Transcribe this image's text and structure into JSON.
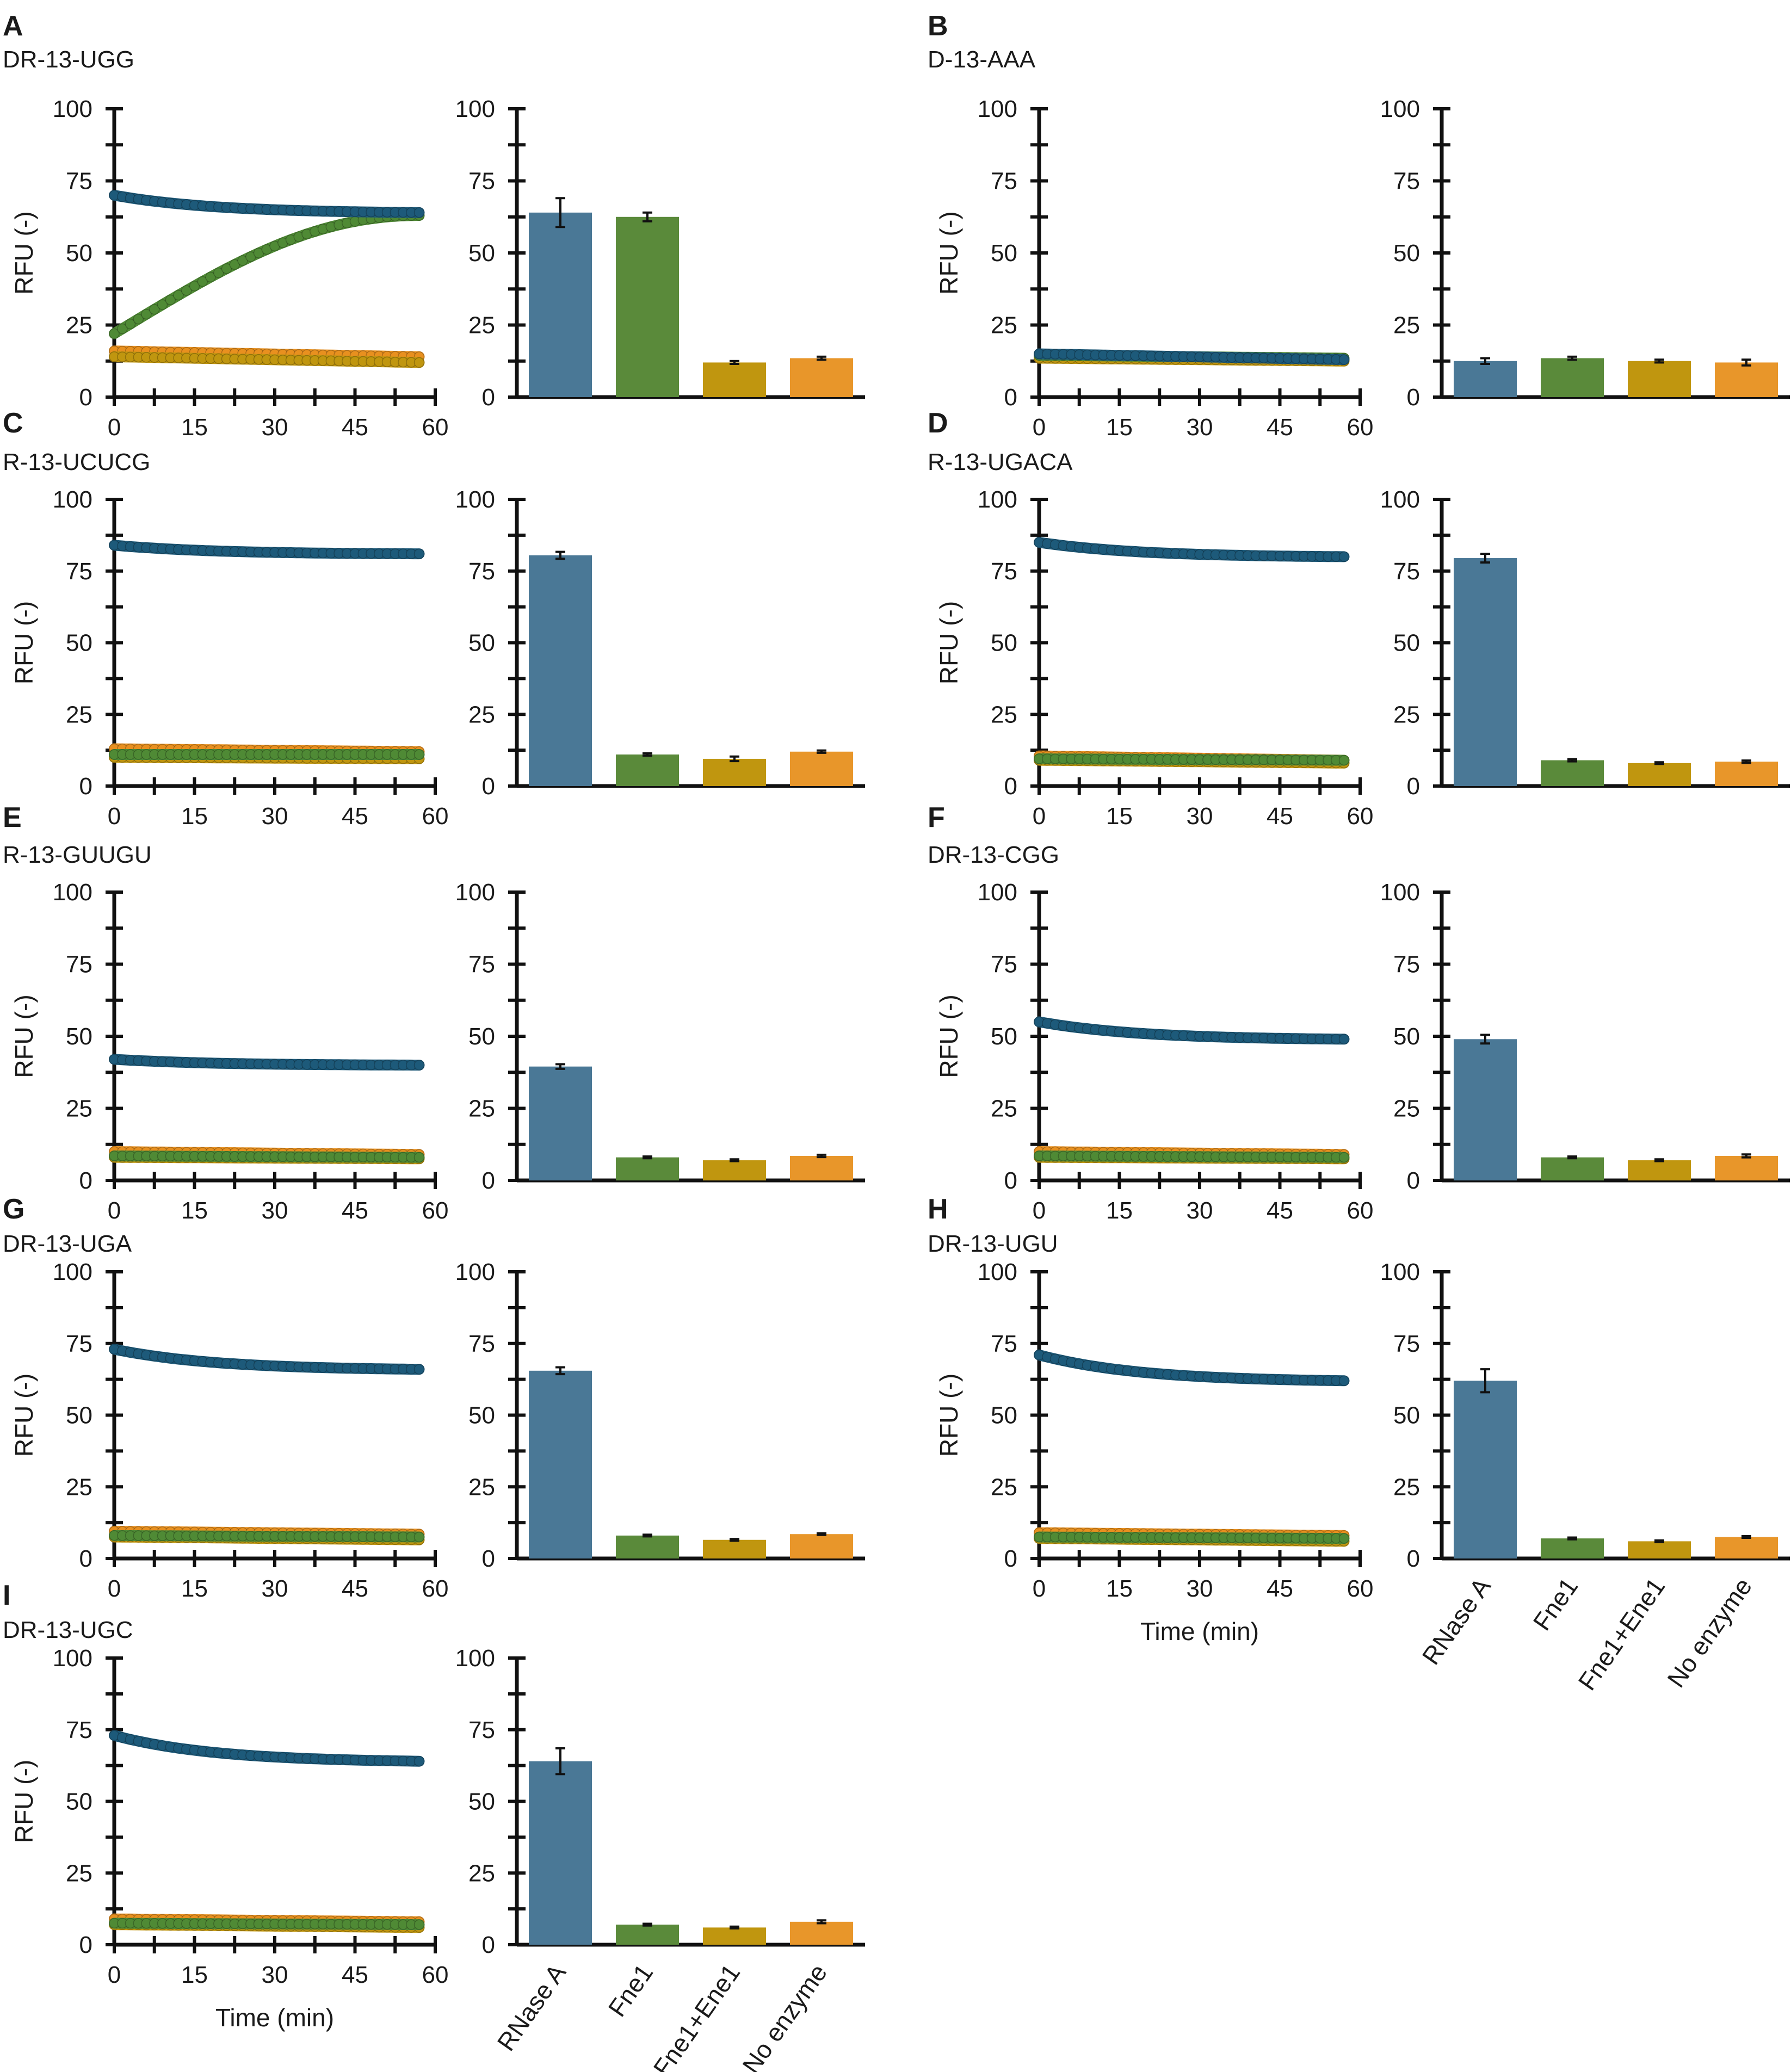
{
  "figure": {
    "y_axis_title": "RFU (-)",
    "x_axis_title": "Time (min)",
    "line_ticks_x": [
      0,
      15,
      30,
      45,
      60
    ],
    "ticks_y": [
      0,
      25,
      50,
      75,
      100
    ],
    "categories": [
      "RNase A",
      "Fne1",
      "Fne1+Ene1",
      "No enzyme"
    ],
    "colors": {
      "RNase A": "#1d5a7a",
      "Fne1": "#4f8a35",
      "Fne1+Ene1": "#c0960f",
      "No enzyme": "#e8901f",
      "bar_RNase A": "#4a7896",
      "bar_Fne1": "#5a8a3a",
      "bar_Fne1+Ene1": "#c0960f",
      "bar_No enzyme": "#e8962a"
    }
  },
  "chart_data": [
    {
      "panel": "A",
      "title": "DR-13-UGG",
      "type": "line+bar",
      "xlabel": "Time (min)",
      "ylabel": "RFU (-)",
      "xlim": [
        0,
        60
      ],
      "ylim": [
        0,
        100
      ],
      "series": [
        {
          "name": "RNase A",
          "start": 70,
          "end": 64,
          "shape": "decay"
        },
        {
          "name": "Fne1",
          "start": 22,
          "end": 63,
          "shape": "sigmoid"
        },
        {
          "name": "Fne1+Ene1",
          "start": 14,
          "end": 12,
          "shape": "linear"
        },
        {
          "name": "No enzyme",
          "start": 16,
          "end": 14,
          "shape": "linear"
        }
      ],
      "bars": {
        "categories": [
          "RNase A",
          "Fne1",
          "Fne1+Ene1",
          "No enzyme"
        ],
        "values": [
          64,
          62.5,
          12,
          13.5
        ],
        "errors": [
          5,
          1.5,
          0.5,
          0.5
        ]
      }
    },
    {
      "panel": "B",
      "title": "D-13-AAA",
      "type": "line+bar",
      "xlabel": "Time (min)",
      "ylabel": "RFU (-)",
      "xlim": [
        0,
        60
      ],
      "ylim": [
        0,
        100
      ],
      "series": [
        {
          "name": "RNase A",
          "start": 15,
          "end": 13,
          "shape": "linear"
        },
        {
          "name": "Fne1",
          "start": 14.5,
          "end": 13.5,
          "shape": "linear"
        },
        {
          "name": "Fne1+Ene1",
          "start": 13.5,
          "end": 12.5,
          "shape": "linear"
        },
        {
          "name": "No enzyme",
          "start": 14,
          "end": 13,
          "shape": "linear"
        }
      ],
      "bars": {
        "categories": [
          "RNase A",
          "Fne1",
          "Fne1+Ene1",
          "No enzyme"
        ],
        "values": [
          12.5,
          13.5,
          12.5,
          12
        ],
        "errors": [
          1,
          0.5,
          0.5,
          1
        ]
      }
    },
    {
      "panel": "C",
      "title": "R-13-UCUCG",
      "type": "line+bar",
      "xlabel": "Time (min)",
      "ylabel": "RFU (-)",
      "xlim": [
        0,
        60
      ],
      "ylim": [
        0,
        100
      ],
      "series": [
        {
          "name": "RNase A",
          "start": 84,
          "end": 81,
          "shape": "decay"
        },
        {
          "name": "Fne1",
          "start": 11,
          "end": 11,
          "shape": "linear"
        },
        {
          "name": "Fne1+Ene1",
          "start": 10,
          "end": 9.5,
          "shape": "linear"
        },
        {
          "name": "No enzyme",
          "start": 13,
          "end": 12,
          "shape": "linear"
        }
      ],
      "bars": {
        "categories": [
          "RNase A",
          "Fne1",
          "Fne1+Ene1",
          "No enzyme"
        ],
        "values": [
          80.5,
          11,
          9.5,
          12
        ],
        "errors": [
          1.2,
          0.4,
          0.8,
          0.4
        ]
      }
    },
    {
      "panel": "D",
      "title": "R-13-UGACA",
      "type": "line+bar",
      "xlabel": "Time (min)",
      "ylabel": "RFU (-)",
      "xlim": [
        0,
        60
      ],
      "ylim": [
        0,
        100
      ],
      "series": [
        {
          "name": "RNase A",
          "start": 85,
          "end": 80,
          "shape": "decay"
        },
        {
          "name": "Fne1",
          "start": 9.5,
          "end": 9,
          "shape": "linear"
        },
        {
          "name": "Fne1+Ene1",
          "start": 9,
          "end": 8,
          "shape": "linear"
        },
        {
          "name": "No enzyme",
          "start": 10.5,
          "end": 9,
          "shape": "linear"
        }
      ],
      "bars": {
        "categories": [
          "RNase A",
          "Fne1",
          "Fne1+Ene1",
          "No enzyme"
        ],
        "values": [
          79.5,
          9,
          8,
          8.5
        ],
        "errors": [
          1.5,
          0.4,
          0.3,
          0.4
        ]
      }
    },
    {
      "panel": "E",
      "title": "R-13-GUUGU",
      "type": "line+bar",
      "xlabel": "Time (min)",
      "ylabel": "RFU (-)",
      "xlim": [
        0,
        60
      ],
      "ylim": [
        0,
        100
      ],
      "series": [
        {
          "name": "RNase A",
          "start": 42,
          "end": 40,
          "shape": "decay"
        },
        {
          "name": "Fne1",
          "start": 8.5,
          "end": 8,
          "shape": "linear"
        },
        {
          "name": "Fne1+Ene1",
          "start": 8,
          "end": 7.5,
          "shape": "linear"
        },
        {
          "name": "No enzyme",
          "start": 10,
          "end": 9,
          "shape": "linear"
        }
      ],
      "bars": {
        "categories": [
          "RNase A",
          "Fne1",
          "Fne1+Ene1",
          "No enzyme"
        ],
        "values": [
          39.5,
          8,
          7,
          8.5
        ],
        "errors": [
          0.8,
          0.3,
          0.3,
          0.4
        ]
      }
    },
    {
      "panel": "F",
      "title": "DR-13-CGG",
      "type": "line+bar",
      "xlabel": "Time (min)",
      "ylabel": "RFU (-)",
      "xlim": [
        0,
        60
      ],
      "ylim": [
        0,
        100
      ],
      "series": [
        {
          "name": "RNase A",
          "start": 55,
          "end": 49,
          "shape": "decay"
        },
        {
          "name": "Fne1",
          "start": 8.5,
          "end": 8,
          "shape": "linear"
        },
        {
          "name": "Fne1+Ene1",
          "start": 8,
          "end": 7.5,
          "shape": "linear"
        },
        {
          "name": "No enzyme",
          "start": 10,
          "end": 9,
          "shape": "linear"
        }
      ],
      "bars": {
        "categories": [
          "RNase A",
          "Fne1",
          "Fne1+Ene1",
          "No enzyme"
        ],
        "values": [
          49,
          8,
          7,
          8.5
        ],
        "errors": [
          1.5,
          0.3,
          0.3,
          0.5
        ]
      }
    },
    {
      "panel": "G",
      "title": "DR-13-UGA",
      "type": "line+bar",
      "xlabel": "Time (min)",
      "ylabel": "RFU (-)",
      "xlim": [
        0,
        60
      ],
      "ylim": [
        0,
        100
      ],
      "series": [
        {
          "name": "RNase A",
          "start": 73,
          "end": 66,
          "shape": "decay"
        },
        {
          "name": "Fne1",
          "start": 8,
          "end": 7.5,
          "shape": "linear"
        },
        {
          "name": "Fne1+Ene1",
          "start": 7.5,
          "end": 6.5,
          "shape": "linear"
        },
        {
          "name": "No enzyme",
          "start": 9.5,
          "end": 8.5,
          "shape": "linear"
        }
      ],
      "bars": {
        "categories": [
          "RNase A",
          "Fne1",
          "Fne1+Ene1",
          "No enzyme"
        ],
        "values": [
          65.5,
          8,
          6.5,
          8.5
        ],
        "errors": [
          1.2,
          0.3,
          0.3,
          0.3
        ]
      }
    },
    {
      "panel": "H",
      "title": "DR-13-UGU",
      "type": "line+bar",
      "xlabel": "Time (min)",
      "ylabel": "RFU (-)",
      "xlim": [
        0,
        60
      ],
      "ylim": [
        0,
        100
      ],
      "series": [
        {
          "name": "RNase A",
          "start": 71,
          "end": 62,
          "shape": "decay"
        },
        {
          "name": "Fne1",
          "start": 7.5,
          "end": 7,
          "shape": "linear"
        },
        {
          "name": "Fne1+Ene1",
          "start": 7,
          "end": 6,
          "shape": "linear"
        },
        {
          "name": "No enzyme",
          "start": 9,
          "end": 8,
          "shape": "linear"
        }
      ],
      "bars": {
        "categories": [
          "RNase A",
          "Fne1",
          "Fne1+Ene1",
          "No enzyme"
        ],
        "values": [
          62,
          7,
          6,
          7.5
        ],
        "errors": [
          4,
          0.3,
          0.3,
          0.3
        ]
      }
    },
    {
      "panel": "I",
      "title": "DR-13-UGC",
      "type": "line+bar",
      "xlabel": "Time (min)",
      "ylabel": "RFU (-)",
      "xlim": [
        0,
        60
      ],
      "ylim": [
        0,
        100
      ],
      "series": [
        {
          "name": "RNase A",
          "start": 73,
          "end": 64,
          "shape": "decay"
        },
        {
          "name": "Fne1",
          "start": 7.5,
          "end": 7,
          "shape": "linear"
        },
        {
          "name": "Fne1+Ene1",
          "start": 7,
          "end": 6,
          "shape": "linear"
        },
        {
          "name": "No enzyme",
          "start": 9,
          "end": 8,
          "shape": "linear"
        }
      ],
      "bars": {
        "categories": [
          "RNase A",
          "Fne1",
          "Fne1+Ene1",
          "No enzyme"
        ],
        "values": [
          64,
          7,
          6,
          8
        ],
        "errors": [
          4.5,
          0.3,
          0.3,
          0.5
        ]
      }
    }
  ]
}
